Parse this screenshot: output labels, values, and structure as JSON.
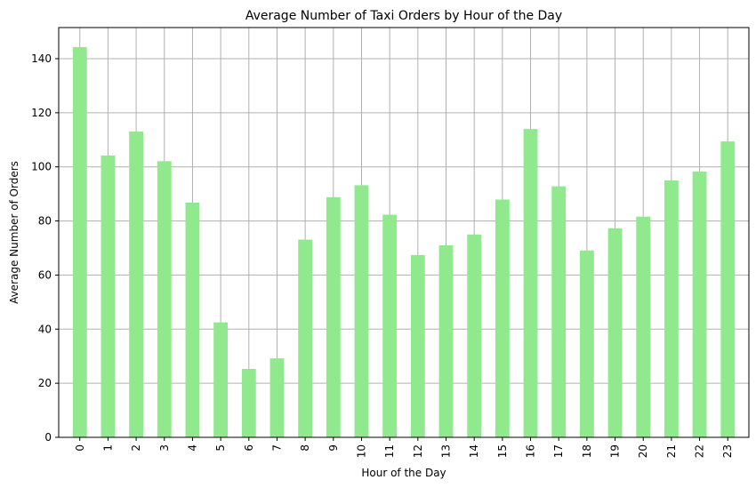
{
  "chart_data": {
    "type": "bar",
    "title": "Average Number of Taxi Orders by Hour of the Day",
    "xlabel": "Hour of the Day",
    "ylabel": "Average Number of Orders",
    "categories": [
      "0",
      "1",
      "2",
      "3",
      "4",
      "5",
      "6",
      "7",
      "8",
      "9",
      "10",
      "11",
      "12",
      "13",
      "14",
      "15",
      "16",
      "17",
      "18",
      "19",
      "20",
      "21",
      "22",
      "23"
    ],
    "values": [
      144.3,
      104.2,
      113.1,
      102.1,
      86.8,
      42.5,
      25.3,
      29.2,
      73.1,
      88.8,
      93.2,
      82.3,
      67.4,
      71.0,
      75.0,
      87.9,
      114.0,
      92.8,
      69.1,
      77.3,
      81.6,
      95.0,
      98.3,
      109.4
    ],
    "ylim": [
      0,
      151.5
    ],
    "yticks": [
      0,
      20,
      40,
      60,
      80,
      100,
      120,
      140
    ],
    "bar_color": "#90e98c",
    "grid": true,
    "legend": "none"
  }
}
